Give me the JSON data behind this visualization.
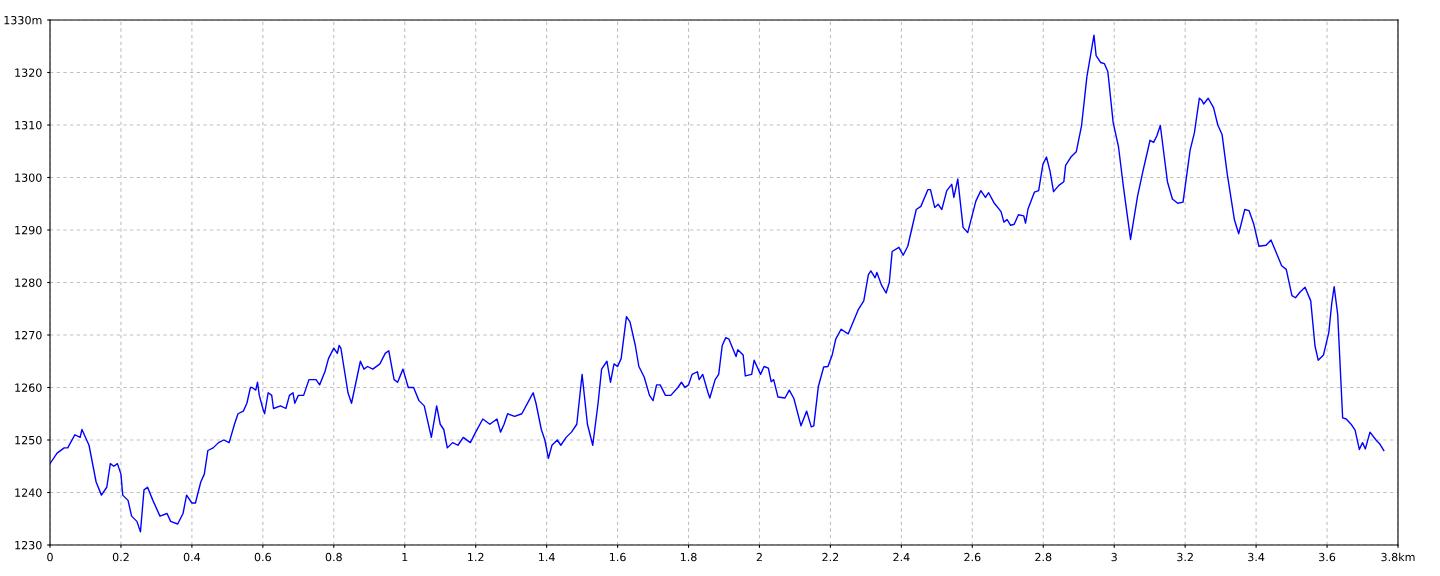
{
  "chart_data": {
    "type": "line",
    "x": [
      0,
      0.02,
      0.04,
      0.05,
      0.07,
      0.085,
      0.09,
      0.11,
      0.13,
      0.145,
      0.16,
      0.17,
      0.18,
      0.19,
      0.2,
      0.205,
      0.22,
      0.23,
      0.245,
      0.255,
      0.265,
      0.275,
      0.29,
      0.31,
      0.33,
      0.34,
      0.36,
      0.375,
      0.385,
      0.4,
      0.41,
      0.425,
      0.435,
      0.445,
      0.46,
      0.475,
      0.49,
      0.505,
      0.52,
      0.53,
      0.545,
      0.555,
      0.565,
      0.57,
      0.58,
      0.585,
      0.59,
      0.6,
      0.605,
      0.615,
      0.625,
      0.63,
      0.65,
      0.665,
      0.675,
      0.685,
      0.69,
      0.7,
      0.715,
      0.73,
      0.75,
      0.76,
      0.775,
      0.785,
      0.8,
      0.81,
      0.815,
      0.82,
      0.84,
      0.85,
      0.875,
      0.885,
      0.895,
      0.91,
      0.93,
      0.945,
      0.955,
      0.97,
      0.98,
      0.995,
      1.01,
      1.025,
      1.04,
      1.055,
      1.075,
      1.09,
      1.1,
      1.11,
      1.12,
      1.135,
      1.15,
      1.165,
      1.185,
      1.2,
      1.22,
      1.24,
      1.26,
      1.27,
      1.28,
      1.29,
      1.31,
      1.33,
      1.35,
      1.362,
      1.37,
      1.385,
      1.395,
      1.405,
      1.415,
      1.43,
      1.44,
      1.455,
      1.47,
      1.485,
      1.5,
      1.515,
      1.53,
      1.545,
      1.555,
      1.57,
      1.58,
      1.59,
      1.6,
      1.61,
      1.625,
      1.635,
      1.65,
      1.66,
      1.675,
      1.69,
      1.7,
      1.71,
      1.72,
      1.735,
      1.75,
      1.77,
      1.78,
      1.79,
      1.8,
      1.81,
      1.825,
      1.83,
      1.84,
      1.855,
      1.86,
      1.875,
      1.885,
      1.895,
      1.905,
      1.914,
      1.934,
      1.939,
      1.954,
      1.96,
      1.978,
      1.985,
      2.003,
      2.013,
      2.025,
      2.033,
      2.04,
      2.052,
      2.072,
      2.084,
      2.097,
      2.117,
      2.133,
      2.146,
      2.153,
      2.166,
      2.181,
      2.193,
      2.205,
      2.215,
      2.23,
      2.25,
      2.279,
      2.294,
      2.307,
      2.314,
      2.326,
      2.331,
      2.344,
      2.357,
      2.366,
      2.374,
      2.393,
      2.405,
      2.418,
      2.442,
      2.455,
      2.475,
      2.482,
      2.494,
      2.504,
      2.514,
      2.528,
      2.542,
      2.548,
      2.559,
      2.574,
      2.587,
      2.61,
      2.624,
      2.637,
      2.646,
      2.661,
      2.681,
      2.689,
      2.698,
      2.708,
      2.718,
      2.73,
      2.745,
      2.75,
      2.757,
      2.775,
      2.787,
      2.799,
      2.809,
      2.819,
      2.829,
      2.844,
      2.858,
      2.863,
      2.878,
      2.893,
      2.908,
      2.923,
      2.943,
      2.949,
      2.962,
      2.972,
      2.982,
      2.997,
      3.012,
      3.026,
      3.046,
      3.066,
      3.081,
      3.101,
      3.111,
      3.12,
      3.13,
      3.15,
      3.164,
      3.179,
      3.194,
      3.214,
      3.226,
      3.24,
      3.247,
      3.252,
      3.265,
      3.28,
      3.292,
      3.304,
      3.319,
      3.339,
      3.351,
      3.368,
      3.38,
      3.393,
      3.408,
      3.428,
      3.442,
      3.472,
      3.485,
      3.501,
      3.511,
      3.524,
      3.538,
      3.554,
      3.566,
      3.575,
      3.59,
      3.605,
      3.613,
      3.62,
      3.63,
      3.644,
      3.654,
      3.669,
      3.679,
      3.691,
      3.7,
      3.708,
      3.721,
      3.738,
      3.748,
      3.76
    ],
    "series": [
      {
        "color": "#0000ff",
        "values": [
          1245.5,
          1247.5,
          1248.5,
          1248.5,
          1251,
          1250.5,
          1252,
          1249,
          1242,
          1239.5,
          1241,
          1245.5,
          1245,
          1245.5,
          1243.5,
          1239.5,
          1238.5,
          1235.5,
          1234.5,
          1232.5,
          1240.5,
          1241,
          1238.5,
          1235.5,
          1236,
          1234.5,
          1234,
          1236,
          1239.5,
          1238,
          1238,
          1242,
          1243.5,
          1248,
          1248.5,
          1249.5,
          1250,
          1249.5,
          1253,
          1255,
          1255.5,
          1257,
          1260,
          1260,
          1259.5,
          1261,
          1258.5,
          1256,
          1255,
          1259,
          1258.5,
          1256,
          1256.5,
          1256,
          1258.5,
          1259,
          1257,
          1258.5,
          1258.5,
          1261.5,
          1261.5,
          1260.5,
          1263,
          1265.5,
          1267.5,
          1266.5,
          1268,
          1267.5,
          1259,
          1257,
          1265,
          1263.5,
          1264,
          1263.5,
          1264.5,
          1266.5,
          1267,
          1261.5,
          1261,
          1263.5,
          1260,
          1260,
          1257.5,
          1256.5,
          1250.5,
          1256.5,
          1253,
          1252,
          1248.5,
          1249.5,
          1249,
          1250.5,
          1249.5,
          1251.5,
          1254,
          1253,
          1254,
          1251.5,
          1253,
          1255,
          1254.5,
          1255,
          1257.5,
          1259,
          1257,
          1252,
          1250,
          1246.5,
          1249,
          1250,
          1249,
          1250.5,
          1251.5,
          1253,
          1262.5,
          1253,
          1249,
          1257,
          1263.5,
          1265,
          1261,
          1264.5,
          1264,
          1265.5,
          1273.5,
          1272.5,
          1268,
          1264,
          1262,
          1258.5,
          1257.5,
          1260.5,
          1260.5,
          1258.5,
          1258.5,
          1260,
          1261,
          1260,
          1260.5,
          1262.5,
          1263,
          1261.5,
          1262.5,
          1259,
          1258,
          1261.5,
          1262.5,
          1268,
          1269.5,
          1269.2,
          1265.9,
          1267.2,
          1266.2,
          1262.2,
          1262.5,
          1265.2,
          1262.5,
          1264,
          1263.7,
          1261.1,
          1261.5,
          1258.2,
          1258,
          1259.5,
          1257.9,
          1252.7,
          1255.5,
          1252.5,
          1252.7,
          1260.2,
          1263.9,
          1264,
          1266.2,
          1269.2,
          1271.1,
          1270.2,
          1274.9,
          1276.5,
          1281.5,
          1282.2,
          1280.9,
          1281.9,
          1279.5,
          1278,
          1280,
          1285.9,
          1286.7,
          1285.2,
          1286.9,
          1293.9,
          1294.5,
          1297.7,
          1297.7,
          1294.3,
          1294.9,
          1293.9,
          1297.5,
          1298.7,
          1296.2,
          1299.7,
          1290.5,
          1289.5,
          1295.5,
          1297.5,
          1296.2,
          1297.1,
          1295.2,
          1293.5,
          1291.5,
          1292,
          1290.9,
          1291.1,
          1292.9,
          1292.7,
          1291.3,
          1294,
          1297.2,
          1297.5,
          1302.5,
          1303.9,
          1301.2,
          1297.3,
          1298.5,
          1299.2,
          1302.3,
          1303.9,
          1304.9,
          1309.9,
          1319.2,
          1327.1,
          1323.2,
          1321.9,
          1321.7,
          1320.2,
          1310.5,
          1305.9,
          1298.2,
          1288.2,
          1296.5,
          1301.2,
          1307.1,
          1306.7,
          1307.9,
          1309.9,
          1299.2,
          1295.9,
          1295.1,
          1295.3,
          1305.2,
          1308.5,
          1315.1,
          1314.7,
          1314,
          1315.1,
          1313.3,
          1310,
          1308.2,
          1300.5,
          1291.9,
          1289.3,
          1293.9,
          1293.7,
          1291.2,
          1286.9,
          1287.1,
          1288.1,
          1283.2,
          1282.5,
          1277.5,
          1277.1,
          1278.2,
          1279.1,
          1276.5,
          1267.9,
          1265.2,
          1266.2,
          1270.5,
          1275.9,
          1279.2,
          1273.9,
          1254.2,
          1254,
          1252.9,
          1251.9,
          1248.2,
          1249.5,
          1248.3,
          1251.5,
          1250,
          1249.3,
          1248
        ]
      }
    ],
    "xlim": [
      0,
      3.8
    ],
    "xticks": [
      0,
      0.2,
      0.4,
      0.6,
      0.8,
      1,
      1.2,
      1.4,
      1.6,
      1.8,
      2,
      2.2,
      2.4,
      2.6,
      2.8,
      3,
      3.2,
      3.4,
      3.6,
      {
        "value": 3.8,
        "label": "3.8km"
      }
    ],
    "ylim": [
      1230,
      1330
    ],
    "yticks": [
      1230,
      1240,
      1250,
      1260,
      1270,
      1280,
      1290,
      1300,
      1310,
      1320,
      {
        "value": 1330,
        "label": "1330m"
      }
    ],
    "grid": true,
    "line_style": "solid",
    "marker": "none"
  }
}
